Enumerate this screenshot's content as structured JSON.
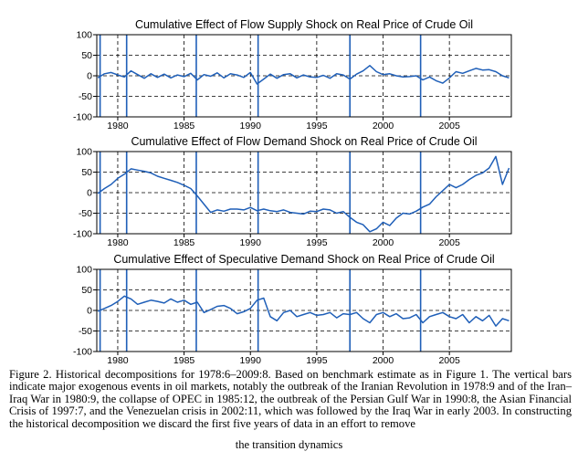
{
  "chart_data": [
    {
      "type": "line",
      "title": "Cumulative Effect of Flow Supply Shock on Real Price of Crude Oil",
      "xlim": [
        1978.42,
        2009.67
      ],
      "ylim": [
        -100,
        100
      ],
      "xticks": [
        1980,
        1985,
        1990,
        1995,
        2000,
        2005
      ],
      "yticks": [
        100,
        50,
        0,
        -50,
        -100
      ],
      "grid": "dashed",
      "event_lines": [
        1978.67,
        1980.67,
        1985.92,
        1990.58,
        1997.5,
        2002.83
      ],
      "x": [
        1978.5,
        1979.0,
        1979.5,
        1980.0,
        1980.5,
        1981.0,
        1981.5,
        1982.0,
        1982.5,
        1983.0,
        1983.5,
        1984.0,
        1984.5,
        1985.0,
        1985.5,
        1986.0,
        1986.5,
        1987.0,
        1987.5,
        1988.0,
        1988.5,
        1989.0,
        1989.5,
        1990.0,
        1990.5,
        1991.0,
        1991.5,
        1992.0,
        1992.5,
        1993.0,
        1993.5,
        1994.0,
        1994.5,
        1995.0,
        1995.5,
        1996.0,
        1996.5,
        1997.0,
        1997.5,
        1998.0,
        1998.5,
        1999.0,
        1999.5,
        2000.0,
        2000.5,
        2001.0,
        2001.5,
        2002.0,
        2002.5,
        2003.0,
        2003.5,
        2004.0,
        2004.5,
        2005.0,
        2005.5,
        2006.0,
        2006.5,
        2007.0,
        2007.5,
        2008.0,
        2008.5,
        2009.0,
        2009.5
      ],
      "y": [
        -5,
        5,
        8,
        2,
        -3,
        12,
        3,
        -6,
        5,
        -4,
        4,
        -5,
        2,
        -2,
        6,
        -10,
        3,
        -1,
        7,
        -5,
        5,
        2,
        -4,
        8,
        -20,
        -8,
        4,
        -6,
        3,
        5,
        -5,
        2,
        -3,
        -4,
        1,
        -6,
        5,
        2,
        -8,
        4,
        12,
        25,
        10,
        3,
        5,
        0,
        -3,
        -2,
        0,
        -10,
        -3,
        -12,
        -18,
        -5,
        10,
        6,
        12,
        18,
        14,
        15,
        10,
        0,
        -5
      ]
    },
    {
      "type": "line",
      "title": "Cumulative Effect of Flow Demand Shock on Real Price of Crude Oil",
      "xlim": [
        1978.42,
        2009.67
      ],
      "ylim": [
        -100,
        100
      ],
      "xticks": [
        1980,
        1985,
        1990,
        1995,
        2000,
        2005
      ],
      "yticks": [
        100,
        50,
        0,
        -50,
        -100
      ],
      "grid": "dashed",
      "event_lines": [
        1978.67,
        1980.67,
        1985.92,
        1990.58,
        1997.5,
        2002.83
      ],
      "x": [
        1978.5,
        1979.0,
        1979.5,
        1980.0,
        1980.5,
        1981.0,
        1981.5,
        1982.0,
        1982.5,
        1983.0,
        1983.5,
        1984.0,
        1984.5,
        1985.0,
        1985.5,
        1986.0,
        1986.5,
        1987.0,
        1987.5,
        1988.0,
        1988.5,
        1989.0,
        1989.5,
        1990.0,
        1990.5,
        1991.0,
        1991.5,
        1992.0,
        1992.5,
        1993.0,
        1993.5,
        1994.0,
        1994.5,
        1995.0,
        1995.5,
        1996.0,
        1996.5,
        1997.0,
        1997.5,
        1998.0,
        1998.5,
        1999.0,
        1999.5,
        2000.0,
        2000.5,
        2001.0,
        2001.5,
        2002.0,
        2002.5,
        2003.0,
        2003.5,
        2004.0,
        2004.5,
        2005.0,
        2005.5,
        2006.0,
        2006.5,
        2007.0,
        2007.5,
        2008.0,
        2008.5,
        2009.0,
        2009.5
      ],
      "y": [
        -2,
        10,
        20,
        35,
        45,
        58,
        55,
        52,
        48,
        40,
        35,
        30,
        25,
        18,
        10,
        -8,
        -28,
        -48,
        -42,
        -45,
        -40,
        -40,
        -42,
        -36,
        -44,
        -40,
        -44,
        -46,
        -42,
        -48,
        -50,
        -52,
        -45,
        -46,
        -40,
        -42,
        -50,
        -46,
        -60,
        -72,
        -78,
        -95,
        -88,
        -72,
        -80,
        -62,
        -50,
        -52,
        -45,
        -35,
        -28,
        -10,
        5,
        20,
        12,
        20,
        32,
        42,
        48,
        60,
        88,
        20,
        60
      ]
    },
    {
      "type": "line",
      "title": "Cumulative Effect of Speculative Demand Shock on Real Price of Crude Oil",
      "xlim": [
        1978.42,
        2009.67
      ],
      "ylim": [
        -100,
        100
      ],
      "xticks": [
        1980,
        1985,
        1990,
        1995,
        2000,
        2005
      ],
      "yticks": [
        100,
        50,
        0,
        -50,
        -100
      ],
      "grid": "dashed",
      "event_lines": [
        1978.67,
        1980.67,
        1985.92,
        1990.58,
        1997.5,
        2002.83
      ],
      "x": [
        1978.5,
        1979.0,
        1979.5,
        1980.0,
        1980.5,
        1981.0,
        1981.5,
        1982.0,
        1982.5,
        1983.0,
        1983.5,
        1984.0,
        1984.5,
        1985.0,
        1985.5,
        1986.0,
        1986.5,
        1987.0,
        1987.5,
        1988.0,
        1988.5,
        1989.0,
        1989.5,
        1990.0,
        1990.5,
        1991.0,
        1991.5,
        1992.0,
        1992.5,
        1993.0,
        1993.5,
        1994.0,
        1994.5,
        1995.0,
        1995.5,
        1996.0,
        1996.5,
        1997.0,
        1997.5,
        1998.0,
        1998.5,
        1999.0,
        1999.5,
        2000.0,
        2000.5,
        2001.0,
        2001.5,
        2002.0,
        2002.5,
        2003.0,
        2003.5,
        2004.0,
        2004.5,
        2005.0,
        2005.5,
        2006.0,
        2006.5,
        2007.0,
        2007.5,
        2008.0,
        2008.5,
        2009.0,
        2009.5
      ],
      "y": [
        -2,
        5,
        12,
        22,
        35,
        28,
        15,
        20,
        25,
        22,
        18,
        28,
        20,
        25,
        15,
        20,
        -5,
        2,
        10,
        12,
        5,
        -8,
        -3,
        5,
        25,
        30,
        -15,
        -25,
        -5,
        0,
        -15,
        -10,
        -5,
        -12,
        -10,
        -5,
        -18,
        -8,
        -10,
        -5,
        -20,
        -30,
        -10,
        -5,
        -15,
        -8,
        -20,
        -18,
        -10,
        -30,
        -15,
        -10,
        -5,
        -15,
        -20,
        -10,
        -30,
        -15,
        -25,
        -12,
        -38,
        -20,
        -25
      ]
    }
  ],
  "caption": {
    "body": "Figure 2.  Historical decompositions for 1978:6–2009:8. Based on benchmark estimate as in Figure 1. The vertical bars indicate major exogenous events in oil markets, notably the outbreak of the Iranian Revolution in 1978:9 and of the Iran–Iraq War in 1980:9, the collapse of OPEC in 1985:12, the outbreak of the Persian Gulf War in 1990:8, the Asian Financial Crisis of 1997:7, and the Venezuelan crisis in 2002:11, which was followed by the Iraq War in early 2003. In constructing the historical decomposition we discard the first five years of data in an effort to remove",
    "last_line": "the transition dynamics"
  },
  "colors": {
    "series": "#1f5fb8",
    "event_line": "#1f5fb8",
    "axis": "#000000",
    "grid": "#000000"
  }
}
